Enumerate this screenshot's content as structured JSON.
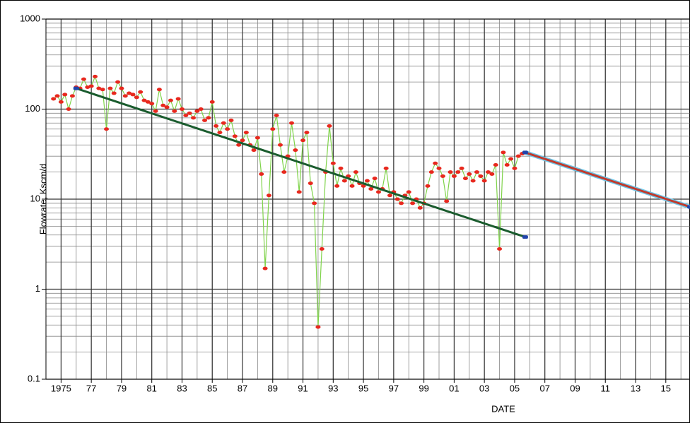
{
  "chart_data": {
    "type": "line",
    "x_label": "DATE",
    "y_label": "Flowrate, Kscm/d",
    "y_label_color": "#2e7d1e",
    "log_y": true,
    "grid": true,
    "xlim": [
      1974,
      2016.6
    ],
    "ylim": [
      0.1,
      1000
    ],
    "yticks": [
      0.1,
      1,
      10,
      100,
      1000
    ],
    "xticks": [
      1975,
      {
        "value": 1977,
        "label": "77"
      },
      {
        "value": 1979,
        "label": "79"
      },
      {
        "value": 1981,
        "label": "81"
      },
      {
        "value": 1983,
        "label": "83"
      },
      {
        "value": 1985,
        "label": "85"
      },
      {
        "value": 1987,
        "label": "87"
      },
      {
        "value": 1989,
        "label": "89"
      },
      {
        "value": 1991,
        "label": "91"
      },
      {
        "value": 1993,
        "label": "93"
      },
      {
        "value": 1995,
        "label": "95"
      },
      {
        "value": 1997,
        "label": "97"
      },
      {
        "value": 1999,
        "label": "99"
      },
      {
        "value": 2001,
        "label": "01"
      },
      {
        "value": 2003,
        "label": "03"
      },
      {
        "value": 2005,
        "label": "05"
      },
      {
        "value": 2007,
        "label": "07"
      },
      {
        "value": 2009,
        "label": "09"
      },
      {
        "value": 2011,
        "label": "11"
      },
      {
        "value": 2013,
        "label": "13"
      },
      {
        "value": 2015,
        "label": "15"
      }
    ],
    "series": [
      {
        "color": "#e8281e",
        "line_color": "#7fd34a",
        "markers": true,
        "x": [
          1974.5,
          1974.75,
          1975,
          1975.25,
          1975.5,
          1975.75,
          1976,
          1976.25,
          1976.5,
          1976.75,
          1977,
          1977.25,
          1977.5,
          1977.75,
          1978,
          1978.25,
          1978.5,
          1978.75,
          1979,
          1979.25,
          1979.5,
          1979.75,
          1980,
          1980.25,
          1980.5,
          1980.75,
          1981,
          1981.25,
          1981.5,
          1981.75,
          1982,
          1982.25,
          1982.5,
          1982.75,
          1983,
          1983.25,
          1983.5,
          1983.75,
          1984,
          1984.25,
          1984.5,
          1984.75,
          1985,
          1985.25,
          1985.5,
          1985.75,
          1986,
          1986.25,
          1986.5,
          1986.75,
          1987,
          1987.25,
          1987.5,
          1987.75,
          1988,
          1988.25,
          1988.5,
          1988.75,
          1989,
          1989.25,
          1989.5,
          1989.75,
          1990,
          1990.25,
          1990.5,
          1990.75,
          1991,
          1991.25,
          1991.5,
          1991.75,
          1992,
          1992.25,
          1992.5,
          1992.75,
          1993,
          1993.25,
          1993.5,
          1993.75,
          1994,
          1994.25,
          1994.5,
          1994.75,
          1995,
          1995.25,
          1995.5,
          1995.75,
          1996,
          1996.25,
          1996.5,
          1996.75,
          1997,
          1997.25,
          1997.5,
          1997.75,
          1998,
          1998.25,
          1998.5,
          1998.75,
          1999,
          1999.25,
          1999.5,
          1999.75,
          2000,
          2000.25,
          2000.5,
          2000.75,
          2001,
          2001.25,
          2001.5,
          2001.75,
          2002,
          2002.25,
          2002.5,
          2002.75,
          2003,
          2003.25,
          2003.5,
          2003.75,
          2004,
          2004.25,
          2004.5,
          2004.75,
          2005,
          2005.25,
          2005.5
        ],
        "values": [
          130,
          140,
          120,
          145,
          100,
          140,
          175,
          170,
          215,
          175,
          180,
          230,
          170,
          165,
          60,
          170,
          150,
          200,
          170,
          140,
          150,
          145,
          135,
          155,
          125,
          120,
          115,
          95,
          165,
          110,
          105,
          125,
          95,
          130,
          100,
          85,
          90,
          80,
          95,
          100,
          75,
          80,
          120,
          65,
          55,
          70,
          60,
          75,
          50,
          40,
          45,
          55,
          40,
          35,
          48,
          19,
          1.7,
          11,
          60,
          85,
          40,
          20,
          30,
          70,
          35,
          12,
          45,
          55,
          15,
          9,
          0.38,
          2.8,
          20,
          65,
          25,
          14,
          22,
          16,
          18,
          14,
          20,
          15,
          14,
          16,
          13,
          17,
          12,
          13,
          22,
          11,
          12,
          10,
          9,
          11,
          12,
          9,
          10,
          8,
          9,
          14,
          20,
          25,
          22,
          18,
          9.5,
          20,
          18,
          20,
          22,
          17,
          19,
          16,
          20,
          18,
          16,
          20,
          19,
          24,
          2.8,
          33,
          24,
          28,
          22,
          30,
          32
        ]
      },
      {
        "color": "#1a5c2e",
        "end_color": "#2244aa",
        "x": [
          1976,
          2005.7
        ],
        "values": [
          170,
          3.8
        ]
      },
      {
        "color": "#c0392b",
        "outline_color": "#6ec6e8",
        "end_color": "#2244aa",
        "x": [
          2005.7,
          2016.6
        ],
        "values": [
          33,
          8.2
        ]
      }
    ]
  }
}
